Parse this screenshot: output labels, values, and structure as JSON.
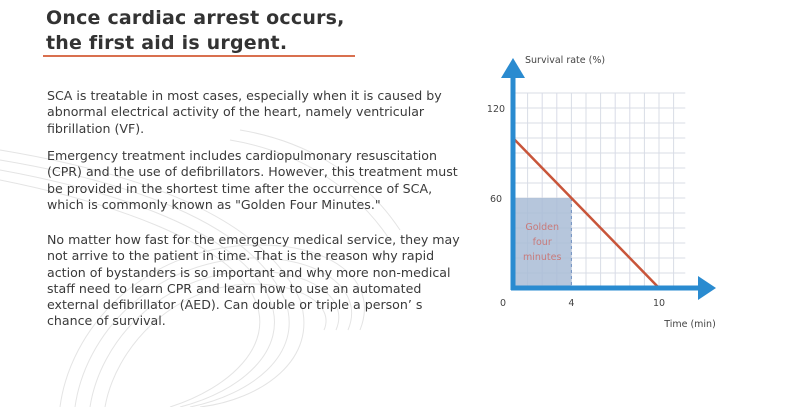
{
  "title_lines": [
    "Once cardiac arrest occurs,",
    "the first aid is urgent."
  ],
  "paragraphs": [
    [
      "SCA is treatable in most cases, especially when it is caused by",
      "abnormal electrical activity of the heart, namely ventricular",
      "fibrillation (VF)."
    ],
    [
      "Emergency treatment includes cardiopulmonary resuscitation",
      "(CPR) and the use of defibrillators. However, this treatment must",
      "be provided in the shortest time after the occurrence of SCA,",
      "which is commonly known as \"Golden Four Minutes.\""
    ],
    [
      "No matter how fast for the emergency medical service, they may",
      "not arrive to the patient in time. That is the reason why rapid",
      "action of bystanders is so important and why more non-medical",
      "staff need to learn CPR and learn how to use an automated",
      "external defibrillator (AED). Can double or triple a person’ s",
      "chance of survival."
    ]
  ],
  "colors": {
    "title": "#333333",
    "rule": "#d9704f",
    "axis": "#2a8bd0",
    "line": "#c8553a",
    "shade": "#a9bcd6",
    "annotation": "#c87a7a",
    "grid": "#d8dce6"
  },
  "chart_data": {
    "type": "line",
    "xlabel": "Time (min)",
    "ylabel": "Survival rate (%)",
    "xticks": [
      "0",
      "4",
      "10"
    ],
    "yticks": [
      "60",
      "120"
    ],
    "xlim": [
      0,
      11.8
    ],
    "ylim": [
      0,
      130
    ],
    "grid": true,
    "series": [
      {
        "x": [
          0,
          10
        ],
        "y": [
          100,
          0
        ]
      }
    ],
    "shaded_region": {
      "x": [
        0,
        4
      ],
      "y": [
        0,
        60
      ],
      "label_lines": [
        "Golden",
        "four",
        "minutes"
      ]
    }
  }
}
